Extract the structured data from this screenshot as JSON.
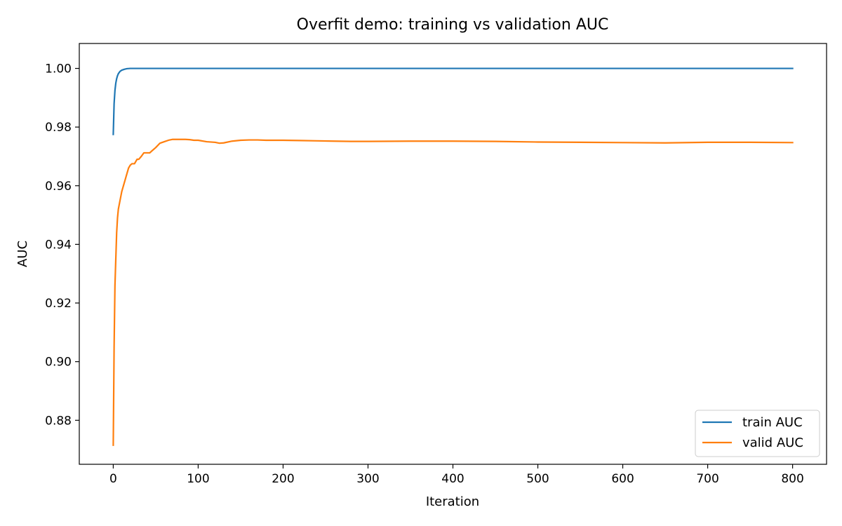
{
  "chart_data": {
    "type": "line",
    "title": "Overfit demo: training vs validation AUC",
    "xlabel": "Iteration",
    "ylabel": "AUC",
    "xlim": [
      -40,
      840
    ],
    "ylim": [
      0.865,
      1.0085
    ],
    "xticks": [
      0,
      100,
      200,
      300,
      400,
      500,
      600,
      700,
      800
    ],
    "xtick_labels": [
      "0",
      "100",
      "200",
      "300",
      "400",
      "500",
      "600",
      "700",
      "800"
    ],
    "yticks": [
      0.88,
      0.9,
      0.92,
      0.94,
      0.96,
      0.98,
      1.0
    ],
    "ytick_labels": [
      "0.88",
      "0.90",
      "0.92",
      "0.94",
      "0.96",
      "0.98",
      "1.00"
    ],
    "grid": false,
    "legend_position": "lower right",
    "series": [
      {
        "name": "train AUC",
        "color": "#1f77b4",
        "x": [
          0,
          1,
          2,
          3,
          4,
          5,
          6,
          8,
          10,
          13,
          16,
          20,
          30,
          50,
          100,
          200,
          300,
          400,
          500,
          600,
          700,
          800
        ],
        "y": [
          0.9775,
          0.988,
          0.9925,
          0.995,
          0.9965,
          0.9975,
          0.9982,
          0.999,
          0.9994,
          0.9997,
          0.9999,
          1.0,
          1.0,
          1.0,
          1.0,
          1.0,
          1.0,
          1.0,
          1.0,
          1.0,
          1.0,
          1.0
        ]
      },
      {
        "name": "valid AUC",
        "color": "#ff7f0e",
        "x": [
          0,
          1,
          2,
          3,
          4,
          5,
          6,
          8,
          10,
          12,
          15,
          18,
          20,
          22,
          25,
          28,
          30,
          33,
          36,
          40,
          43,
          46,
          50,
          55,
          60,
          65,
          70,
          75,
          80,
          85,
          90,
          95,
          100,
          110,
          120,
          125,
          130,
          140,
          150,
          160,
          170,
          180,
          200,
          220,
          240,
          260,
          280,
          300,
          350,
          400,
          450,
          500,
          550,
          600,
          650,
          700,
          750,
          800
        ],
        "y": [
          0.8715,
          0.905,
          0.926,
          0.935,
          0.944,
          0.949,
          0.952,
          0.955,
          0.958,
          0.96,
          0.963,
          0.966,
          0.967,
          0.9675,
          0.9675,
          0.969,
          0.969,
          0.97,
          0.9712,
          0.9712,
          0.9712,
          0.972,
          0.973,
          0.9745,
          0.975,
          0.9755,
          0.9758,
          0.9758,
          0.9758,
          0.9758,
          0.9757,
          0.9755,
          0.9755,
          0.975,
          0.9748,
          0.9745,
          0.9746,
          0.9752,
          0.9755,
          0.9756,
          0.9756,
          0.9755,
          0.9755,
          0.9754,
          0.9753,
          0.9752,
          0.9751,
          0.9751,
          0.9752,
          0.9752,
          0.9751,
          0.9749,
          0.9748,
          0.9747,
          0.9746,
          0.9748,
          0.9748,
          0.9747
        ]
      }
    ]
  }
}
